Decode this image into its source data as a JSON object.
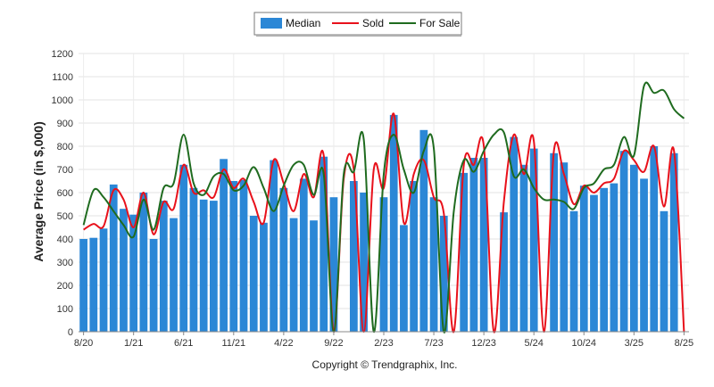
{
  "chart_data": {
    "type": "bar",
    "ylabel": "Average Price (in $,000)",
    "ylim": [
      0,
      1200
    ],
    "yticks": [
      0,
      100,
      200,
      300,
      400,
      500,
      600,
      700,
      800,
      900,
      1000,
      1100,
      1200
    ],
    "grid": true,
    "legend_position": "top-center",
    "x_tick_labels": [
      "8/20",
      "1/21",
      "6/21",
      "11/21",
      "4/22",
      "9/22",
      "2/23",
      "7/23",
      "12/23",
      "5/24",
      "10/24",
      "3/25",
      "8/25"
    ],
    "x_tick_indices": [
      0,
      5,
      10,
      15,
      20,
      25,
      30,
      35,
      40,
      45,
      50,
      55,
      60
    ],
    "num_periods": 61,
    "series": [
      {
        "name": "Median",
        "kind": "bar",
        "color": "#2b87d6",
        "values": [
          400,
          405,
          445,
          635,
          530,
          505,
          600,
          400,
          565,
          490,
          720,
          620,
          570,
          565,
          745,
          650,
          655,
          500,
          470,
          740,
          620,
          490,
          660,
          480,
          755,
          580,
          0,
          650,
          600,
          0,
          580,
          935,
          460,
          650,
          870,
          580,
          500,
          0,
          685,
          750,
          750,
          0,
          515,
          840,
          720,
          790,
          0,
          770,
          730,
          520,
          630,
          590,
          620,
          640,
          780,
          720,
          660,
          800,
          520,
          770,
          0
        ]
      },
      {
        "name": "Sold",
        "kind": "line",
        "color": "#e8111b",
        "values": [
          440,
          465,
          455,
          610,
          570,
          450,
          600,
          420,
          560,
          530,
          720,
          600,
          610,
          580,
          700,
          620,
          660,
          560,
          470,
          740,
          640,
          520,
          680,
          580,
          760,
          0,
          660,
          700,
          0,
          700,
          620,
          940,
          470,
          680,
          740,
          580,
          510,
          0,
          720,
          720,
          800,
          0,
          560,
          850,
          680,
          820,
          0,
          780,
          680,
          550,
          630,
          600,
          640,
          660,
          780,
          740,
          690,
          800,
          540,
          780,
          0
        ]
      },
      {
        "name": "For Sale",
        "kind": "line",
        "color": "#1f6b1f",
        "values": [
          460,
          610,
          580,
          520,
          460,
          410,
          570,
          440,
          620,
          640,
          850,
          640,
          590,
          670,
          680,
          610,
          630,
          710,
          620,
          520,
          630,
          720,
          720,
          590,
          680,
          0,
          680,
          690,
          830,
          0,
          680,
          850,
          700,
          600,
          780,
          790,
          0,
          520,
          740,
          690,
          780,
          850,
          860,
          670,
          700,
          620,
          570,
          570,
          560,
          530,
          620,
          640,
          700,
          720,
          840,
          760,
          1060,
          1030,
          1040,
          960,
          920
        ]
      }
    ]
  },
  "footer": {
    "copyright": "Copyright © Trendgraphix, Inc."
  }
}
